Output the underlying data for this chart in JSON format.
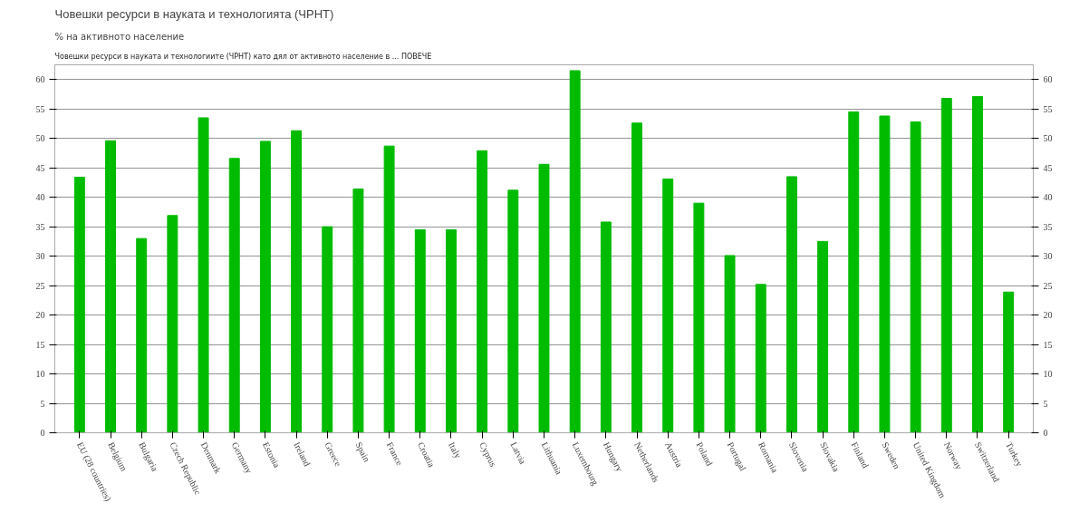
{
  "chart_data": {
    "type": "bar",
    "title": "Човешки ресурси в науката и технологията (ЧРНТ)",
    "subtitle": "% на активното население",
    "annotations": [
      "Човешки ресурси в науката и технологиите (ЧРНТ) като дял от активното население в ... ПОВЕЧЕ"
    ],
    "categories": [
      "EU (28 countries)",
      "Belgium",
      "Bulgaria",
      "Czech Republic",
      "Denmark",
      "Germany",
      "Estonia",
      "Ireland",
      "Greece",
      "Spain",
      "France",
      "Croatia",
      "Italy",
      "Cyprus",
      "Latvia",
      "Lithuania",
      "Luxembourg",
      "Hungary",
      "Netherlands",
      "Austria",
      "Poland",
      "Portugal",
      "Romania",
      "Slovenia",
      "Slovakia",
      "Finland",
      "Sweden",
      "United Kingdom",
      "Norway",
      "Switzerland",
      "Turkey"
    ],
    "values": [
      43.4,
      49.6,
      33.0,
      36.9,
      53.5,
      46.6,
      49.5,
      51.3,
      35.0,
      41.4,
      48.7,
      34.5,
      34.5,
      47.9,
      41.2,
      45.6,
      61.5,
      35.8,
      52.6,
      43.1,
      39.0,
      30.1,
      25.2,
      43.5,
      32.5,
      54.5,
      53.8,
      52.8,
      56.8,
      57.1,
      23.9
    ],
    "color": "#00bb00",
    "ylim": [
      0,
      62.5
    ],
    "yticks": [
      0,
      5,
      10,
      15,
      20,
      25,
      30,
      35,
      40,
      45,
      50,
      55,
      60
    ],
    "grid": "y",
    "y2lim": [
      0,
      62.5
    ],
    "y2ticks": [
      0,
      5,
      10,
      15,
      20,
      25,
      30,
      35,
      40,
      45,
      50,
      55,
      60
    ]
  }
}
